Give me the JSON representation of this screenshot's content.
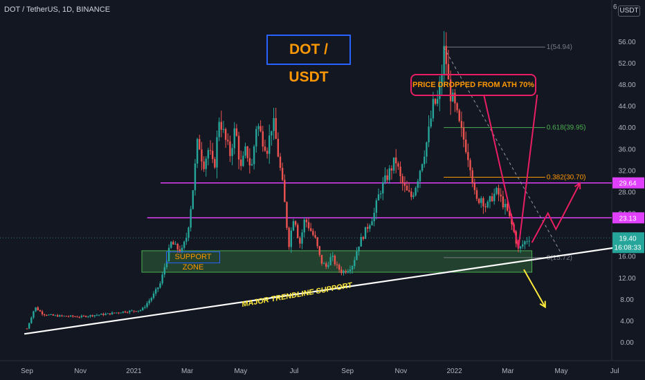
{
  "header": {
    "symbol": "DOT / TetherUS, 1D, BINANCE",
    "currency": "USDT",
    "top_digit": "6"
  },
  "annotations": {
    "title": "DOT / USDT",
    "note": "PRICE DROPPED FROM ATH 70%",
    "zone": "SUPPORT ZONE",
    "trendline": "MAJOR TRENDLINE SUPPORT"
  },
  "price_tags": {
    "r1": "29.64",
    "r2": "23.13",
    "last": "19.40",
    "countdown": "16:08:33"
  },
  "colors": {
    "background": "#131722",
    "up": "#26a69a",
    "down": "#ef5350",
    "resistance": "#e040fb",
    "zone": "#4caf50",
    "fib_618": "#4caf50",
    "fib_382": "#ff9800",
    "trendline": "#ffffff",
    "arrow_up": "#e91e63",
    "arrow_down": "#ffeb3b"
  },
  "chart_data": {
    "type": "candlestick",
    "x_labels": [
      "Sep",
      "Nov",
      "2021",
      "Mar",
      "May",
      "Jul",
      "Sep",
      "Nov",
      "2022",
      "Mar",
      "May",
      "Jul"
    ],
    "y_ticks": [
      "0.00",
      "4.00",
      "8.00",
      "12.00",
      "16.00",
      "20.00",
      "24.00",
      "28.00",
      "32.00",
      "36.00",
      "40.00",
      "44.00",
      "48.00",
      "52.00",
      "56.00"
    ],
    "y_values": [
      0,
      4,
      8,
      12,
      16,
      20,
      24,
      28,
      32,
      36,
      40,
      44,
      48,
      52,
      56
    ],
    "y_range": [
      0,
      57
    ],
    "time_range": [
      0,
      24
    ],
    "price_path": [
      [
        0.0,
        2.5
      ],
      [
        0.3,
        6.5
      ],
      [
        0.6,
        5.2
      ],
      [
        1.0,
        4.9
      ],
      [
        1.5,
        4.8
      ],
      [
        2.0,
        4.7
      ],
      [
        2.5,
        5.0
      ],
      [
        3.0,
        5.2
      ],
      [
        3.5,
        5.6
      ],
      [
        4.0,
        5.8
      ],
      [
        4.3,
        6.0
      ],
      [
        4.7,
        8.5
      ],
      [
        5.0,
        11.0
      ],
      [
        5.2,
        15.0
      ],
      [
        5.4,
        18.5
      ],
      [
        5.6,
        17.5
      ],
      [
        5.8,
        17.0
      ],
      [
        6.0,
        20.0
      ],
      [
        6.2,
        28.0
      ],
      [
        6.4,
        38.0
      ],
      [
        6.6,
        33.0
      ],
      [
        6.8,
        36.0
      ],
      [
        7.0,
        32.0
      ],
      [
        7.2,
        42.0
      ],
      [
        7.4,
        38.0
      ],
      [
        7.6,
        35.0
      ],
      [
        7.8,
        40.0
      ],
      [
        8.0,
        32.0
      ],
      [
        8.2,
        36.0
      ],
      [
        8.4,
        32.0
      ],
      [
        8.6,
        41.0
      ],
      [
        8.8,
        38.0
      ],
      [
        9.0,
        36.0
      ],
      [
        9.2,
        41.5
      ],
      [
        9.4,
        35.0
      ],
      [
        9.6,
        28.0
      ],
      [
        9.8,
        18.0
      ],
      [
        10.0,
        24.0
      ],
      [
        10.2,
        18.0
      ],
      [
        10.4,
        23.0
      ],
      [
        10.6,
        21.0
      ],
      [
        10.8,
        19.0
      ],
      [
        11.0,
        15.0
      ],
      [
        11.2,
        14.0
      ],
      [
        11.4,
        16.0
      ],
      [
        11.6,
        14.0
      ],
      [
        11.8,
        13.0
      ],
      [
        12.0,
        13.5
      ],
      [
        12.2,
        14.5
      ],
      [
        12.4,
        18.0
      ],
      [
        12.6,
        20.0
      ],
      [
        12.8,
        22.0
      ],
      [
        13.0,
        24.0
      ],
      [
        13.2,
        28.0
      ],
      [
        13.4,
        30.0
      ],
      [
        13.6,
        32.0
      ],
      [
        13.8,
        34.0
      ],
      [
        14.0,
        30.0
      ],
      [
        14.2,
        28.0
      ],
      [
        14.4,
        27.0
      ],
      [
        14.6,
        30.0
      ],
      [
        14.8,
        34.0
      ],
      [
        15.0,
        38.0
      ],
      [
        15.2,
        44.0
      ],
      [
        15.4,
        45.0
      ],
      [
        15.5,
        48.5
      ],
      [
        15.6,
        54.5
      ],
      [
        15.7,
        52.0
      ],
      [
        15.8,
        47.0
      ],
      [
        16.0,
        44.0
      ],
      [
        16.2,
        40.0
      ],
      [
        16.4,
        37.0
      ],
      [
        16.6,
        33.0
      ],
      [
        16.8,
        26.0
      ],
      [
        17.0,
        27.0
      ],
      [
        17.2,
        25.0
      ],
      [
        17.4,
        27.0
      ],
      [
        17.6,
        28.0
      ],
      [
        17.8,
        26.0
      ],
      [
        18.0,
        24.0
      ],
      [
        18.2,
        21.0
      ],
      [
        18.4,
        17.0
      ],
      [
        18.6,
        18.5
      ],
      [
        18.8,
        19.4
      ]
    ],
    "horizontal_levels": [
      {
        "label": "29.64",
        "value": 29.64,
        "kind": "resistance"
      },
      {
        "label": "23.13",
        "value": 23.13,
        "kind": "resistance"
      }
    ],
    "fibonacci": [
      {
        "label": "1(54.94)",
        "value": 54.94
      },
      {
        "label": "0.618(39.95)",
        "value": 39.95
      },
      {
        "label": "0.382(30.70)",
        "value": 30.7
      },
      {
        "label": "0(15.72)",
        "value": 15.72
      }
    ],
    "support_zone": {
      "low": 13.0,
      "high": 17.0,
      "t_start": 4.3,
      "t_end": 18.9
    },
    "trendline": {
      "t1": -0.1,
      "p1": 1.5,
      "t2": 22.6,
      "p2": 18.0
    },
    "ath_projection": {
      "t1": 15.6,
      "p1": 54.9,
      "t2": 20.0,
      "p2": 16.5
    },
    "projection_up": [
      [
        18.9,
        18.5
      ],
      [
        19.5,
        24.0
      ],
      [
        19.8,
        21.0
      ],
      [
        20.7,
        29.6
      ]
    ],
    "projection_down": [
      [
        18.6,
        13.5
      ],
      [
        19.4,
        6.5
      ]
    ],
    "last_price": 19.4
  }
}
